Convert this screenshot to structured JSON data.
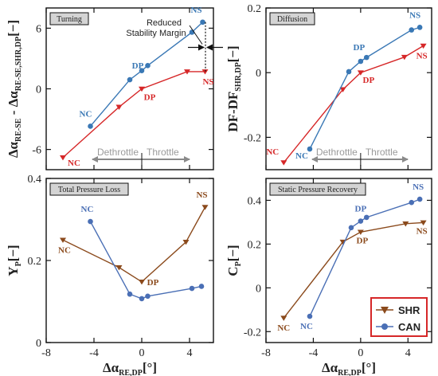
{
  "colors": {
    "SHR": "#d62728",
    "CAN": "#3a78b5",
    "SHR_brown": "#8b4a1c",
    "CAN_blue": "#4a6fb5",
    "arrow": "#8a8a8a"
  },
  "legend": {
    "items": [
      {
        "label": "SHR",
        "color": "#8b4a1c",
        "marker": "triangle-down"
      },
      {
        "label": "CAN",
        "color": "#4a6fb5",
        "marker": "circle"
      }
    ]
  },
  "chart_data": [
    {
      "type": "line",
      "title": "Turning",
      "xlabel_main": "Δα",
      "xlabel_sub": "RE,DP",
      "xlabel_unit": "[°]",
      "ylabel_main": "Δα",
      "ylabel_sub1": "RE-SE",
      "ylabel_mid": " - Δα",
      "ylabel_sub2": "RE-SE,SHR,DP",
      "ylabel_unit": "[−]",
      "xlim": [
        -8,
        6
      ],
      "ylim": [
        -8,
        8
      ],
      "yticks": [
        -6,
        0,
        6
      ],
      "xticks": [],
      "series": [
        {
          "key": "SHR",
          "color": "#d62728",
          "marker": "triangle-down",
          "x": [
            -6.6,
            -1.9,
            0.0,
            3.8,
            5.3
          ],
          "y": [
            -6.8,
            -1.8,
            0.0,
            1.7,
            1.7
          ]
        },
        {
          "key": "CAN",
          "color": "#3a78b5",
          "marker": "circle",
          "x": [
            -4.3,
            -1.0,
            0.0,
            0.5,
            4.2,
            5.1
          ],
          "y": [
            -3.7,
            0.9,
            1.8,
            2.3,
            5.6,
            6.6
          ]
        }
      ],
      "point_labels": [
        {
          "text": "NC",
          "series": "SHR",
          "index": 0,
          "dx": 14,
          "dy": 10
        },
        {
          "text": "DP",
          "series": "SHR",
          "index": 2,
          "dx": 10,
          "dy": 14
        },
        {
          "text": "NS",
          "series": "SHR",
          "index": 4,
          "dx": 4,
          "dy": 16
        },
        {
          "text": "NC",
          "series": "CAN",
          "index": 0,
          "dx": -6,
          "dy": -12
        },
        {
          "text": "DP",
          "series": "CAN",
          "index": 1,
          "dx": 10,
          "dy": -14
        },
        {
          "text": "NS",
          "series": "CAN",
          "index": 5,
          "dx": -8,
          "dy": -12
        }
      ],
      "annotation": {
        "line1": "Reduced",
        "line2": "Stability Margin"
      },
      "regions": {
        "left": "Dethrottle",
        "right": "Throttle"
      }
    },
    {
      "type": "line",
      "title": "Diffusion",
      "xlabel_main": "Δα",
      "xlabel_sub": "RE,DP",
      "xlabel_unit": "[°]",
      "ylabel_main": "DF-DF",
      "ylabel_sub1": "SHR,DP",
      "ylabel_unit": "[−]",
      "xlim": [
        -8,
        6
      ],
      "ylim": [
        -0.3,
        0.2
      ],
      "yticks": [
        -0.2,
        0,
        0.2
      ],
      "xticks": [],
      "series": [
        {
          "key": "SHR",
          "color": "#d62728",
          "marker": "triangle-down",
          "x": [
            -6.5,
            -1.5,
            0.0,
            3.7,
            5.3
          ],
          "y": [
            -0.278,
            -0.052,
            0.0,
            0.048,
            0.083
          ]
        },
        {
          "key": "CAN",
          "color": "#3a78b5",
          "marker": "circle",
          "x": [
            -4.3,
            -1.0,
            0.0,
            0.5,
            4.3,
            5.0
          ],
          "y": [
            -0.236,
            0.003,
            0.035,
            0.047,
            0.132,
            0.14
          ]
        }
      ],
      "point_labels": [
        {
          "text": "NC",
          "series": "SHR",
          "index": 0,
          "dx": -14,
          "dy": -10
        },
        {
          "text": "DP",
          "series": "SHR",
          "index": 2,
          "dx": 10,
          "dy": 13
        },
        {
          "text": "NS",
          "series": "SHR",
          "index": 4,
          "dx": -2,
          "dy": 16
        },
        {
          "text": "NC",
          "series": "CAN",
          "index": 0,
          "dx": -10,
          "dy": 12
        },
        {
          "text": "DP",
          "series": "CAN",
          "index": 2,
          "dx": -2,
          "dy": -14
        },
        {
          "text": "NS",
          "series": "CAN",
          "index": 5,
          "dx": -6,
          "dy": -12
        }
      ],
      "regions": {
        "left": "Dethrottle",
        "right": "Throttle"
      }
    },
    {
      "type": "line",
      "title": "Total Pressure Loss",
      "xlabel_main": "Δα",
      "xlabel_sub": "RE,DP",
      "xlabel_unit": "[°]",
      "ylabel_main": "Y",
      "ylabel_sub1": "P",
      "ylabel_unit": "[−]",
      "xlim": [
        -8,
        6
      ],
      "ylim": [
        0,
        0.4
      ],
      "yticks": [
        0,
        0.2,
        0.4
      ],
      "xticks": [
        -8,
        -4,
        0,
        4
      ],
      "series": [
        {
          "key": "SHR",
          "color": "#8b4a1c",
          "marker": "triangle-down",
          "x": [
            -6.6,
            -1.9,
            0.0,
            3.7,
            5.3
          ],
          "y": [
            0.25,
            0.183,
            0.148,
            0.245,
            0.33
          ]
        },
        {
          "key": "CAN",
          "color": "#4a6fb5",
          "marker": "circle",
          "x": [
            -4.3,
            -1.0,
            0.0,
            0.5,
            4.2,
            5.0
          ],
          "y": [
            0.295,
            0.118,
            0.107,
            0.113,
            0.132,
            0.137
          ]
        }
      ],
      "point_labels": [
        {
          "text": "NC",
          "series": "SHR",
          "index": 0,
          "dx": 2,
          "dy": 16
        },
        {
          "text": "DP",
          "series": "SHR",
          "index": 2,
          "dx": 14,
          "dy": 4
        },
        {
          "text": "NS",
          "series": "SHR",
          "index": 4,
          "dx": -4,
          "dy": -12
        },
        {
          "text": "NC",
          "series": "CAN",
          "index": 0,
          "dx": -4,
          "dy": -12
        }
      ]
    },
    {
      "type": "line",
      "title": "Static Pressure Recovery",
      "xlabel_main": "Δα",
      "xlabel_sub": "RE,DP",
      "xlabel_unit": "[°]",
      "ylabel_main": "C",
      "ylabel_sub1": "P",
      "ylabel_unit": "[−]",
      "xlim": [
        -8,
        6
      ],
      "ylim": [
        -0.25,
        0.5
      ],
      "yticks": [
        -0.2,
        0,
        0.2,
        0.4
      ],
      "xticks": [
        -8,
        -4,
        0,
        4
      ],
      "series": [
        {
          "key": "SHR",
          "color": "#8b4a1c",
          "marker": "triangle-down",
          "x": [
            -6.5,
            -1.5,
            0.0,
            3.8,
            5.3
          ],
          "y": [
            -0.138,
            0.21,
            0.255,
            0.293,
            0.298
          ]
        },
        {
          "key": "CAN",
          "color": "#4a6fb5",
          "marker": "circle",
          "x": [
            -4.3,
            -0.8,
            0.0,
            0.5,
            4.3,
            5.0
          ],
          "y": [
            -0.13,
            0.275,
            0.305,
            0.322,
            0.39,
            0.405
          ]
        }
      ],
      "point_labels": [
        {
          "text": "NC",
          "series": "SHR",
          "index": 0,
          "dx": 0,
          "dy": 16
        },
        {
          "text": "DP",
          "series": "SHR",
          "index": 2,
          "dx": 2,
          "dy": 14
        },
        {
          "text": "NS",
          "series": "SHR",
          "index": 4,
          "dx": -2,
          "dy": 14
        },
        {
          "text": "NC",
          "series": "CAN",
          "index": 0,
          "dx": -4,
          "dy": 16
        },
        {
          "text": "DP",
          "series": "CAN",
          "index": 2,
          "dx": 0,
          "dy": -12
        },
        {
          "text": "NS",
          "series": "CAN",
          "index": 5,
          "dx": -2,
          "dy": -12
        }
      ]
    }
  ]
}
